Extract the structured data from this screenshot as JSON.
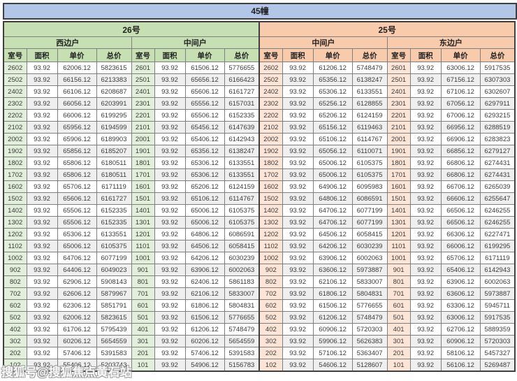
{
  "title": "45幢",
  "watermark": "搜狐号@搜狐焦点黄石站",
  "columns": [
    "室号",
    "面积",
    "单价",
    "总价"
  ],
  "sections": [
    {
      "label": "26号",
      "units": [
        "西边户",
        "中间户"
      ]
    },
    {
      "label": "25号",
      "units": [
        "中间户",
        "东边户"
      ]
    }
  ],
  "groups": [
    {
      "building": "26号",
      "unit": "西边户",
      "rows": [
        [
          "2602",
          "93.92",
          "62006.12",
          "5823615"
        ],
        [
          "2502",
          "93.92",
          "66156.12",
          "6213383"
        ],
        [
          "2402",
          "93.92",
          "66106.12",
          "6208687"
        ],
        [
          "2302",
          "93.92",
          "66056.12",
          "6203991"
        ],
        [
          "2202",
          "93.92",
          "66006.12",
          "6199295"
        ],
        [
          "2102",
          "93.92",
          "65956.12",
          "6194599"
        ],
        [
          "2002",
          "93.92",
          "65906.12",
          "6189903"
        ],
        [
          "1902",
          "93.92",
          "65856.12",
          "6185207"
        ],
        [
          "1802",
          "93.92",
          "65806.12",
          "6180511"
        ],
        [
          "1702",
          "93.92",
          "65806.12",
          "6180511"
        ],
        [
          "1602",
          "93.92",
          "65706.12",
          "6171119"
        ],
        [
          "1502",
          "93.92",
          "65606.12",
          "6161727"
        ],
        [
          "1402",
          "93.92",
          "65506.12",
          "6152335"
        ],
        [
          "1302",
          "93.92",
          "65506.12",
          "6152335"
        ],
        [
          "1202",
          "93.92",
          "65306.12",
          "6133551"
        ],
        [
          "1102",
          "93.92",
          "65006.12",
          "6105375"
        ],
        [
          "1002",
          "93.92",
          "64706.12",
          "6077199"
        ],
        [
          "902",
          "93.92",
          "64406.12",
          "6049023"
        ],
        [
          "802",
          "93.92",
          "62906.12",
          "5908143"
        ],
        [
          "702",
          "93.92",
          "62606.12",
          "5879967"
        ],
        [
          "602",
          "93.92",
          "62306.12",
          "5851791"
        ],
        [
          "502",
          "93.92",
          "62006.12",
          "5823615"
        ],
        [
          "402",
          "93.92",
          "61706.12",
          "5795439"
        ],
        [
          "302",
          "93.92",
          "60206.12",
          "5654559"
        ],
        [
          "202",
          "93.92",
          "57406.12",
          "5391583"
        ],
        [
          "102",
          "93.92",
          "55406.12",
          "5203743"
        ]
      ]
    },
    {
      "building": "26号",
      "unit": "中间户",
      "rows": [
        [
          "2601",
          "93.92",
          "61506.12",
          "5776655"
        ],
        [
          "2501",
          "93.92",
          "65656.12",
          "6166423"
        ],
        [
          "2401",
          "93.92",
          "65606.12",
          "6161727"
        ],
        [
          "2301",
          "93.92",
          "65556.12",
          "6157031"
        ],
        [
          "2201",
          "93.92",
          "65506.12",
          "6152335"
        ],
        [
          "2101",
          "93.92",
          "65456.12",
          "6147639"
        ],
        [
          "2001",
          "93.92",
          "65406.12",
          "6142943"
        ],
        [
          "1901",
          "93.92",
          "65356.12",
          "6138247"
        ],
        [
          "1801",
          "93.92",
          "65306.12",
          "6133551"
        ],
        [
          "1701",
          "93.92",
          "65306.12",
          "6133551"
        ],
        [
          "1601",
          "93.92",
          "65206.12",
          "6124159"
        ],
        [
          "1501",
          "93.92",
          "65106.12",
          "6114767"
        ],
        [
          "1401",
          "93.92",
          "65006.12",
          "6105375"
        ],
        [
          "1301",
          "93.92",
          "65006.12",
          "6105375"
        ],
        [
          "1201",
          "93.92",
          "64806.12",
          "6086591"
        ],
        [
          "1101",
          "93.92",
          "64506.12",
          "6058415"
        ],
        [
          "1001",
          "93.92",
          "64206.12",
          "6030239"
        ],
        [
          "901",
          "93.92",
          "63906.12",
          "6002063"
        ],
        [
          "801",
          "93.92",
          "62406.12",
          "5861183"
        ],
        [
          "701",
          "93.92",
          "62106.12",
          "5833007"
        ],
        [
          "601",
          "93.92",
          "61806.12",
          "5804831"
        ],
        [
          "501",
          "93.92",
          "61506.12",
          "5776655"
        ],
        [
          "401",
          "93.92",
          "61206.12",
          "5748479"
        ],
        [
          "301",
          "93.92",
          "60206.12",
          "5654559"
        ],
        [
          "201",
          "93.92",
          "57406.12",
          "5391583"
        ],
        [
          "101",
          "93.92",
          "54906.12",
          "5156783"
        ]
      ]
    },
    {
      "building": "25号",
      "unit": "中间户",
      "rows": [
        [
          "2602",
          "93.92",
          "61206.12",
          "5748479"
        ],
        [
          "2502",
          "93.92",
          "65356.12",
          "6138247"
        ],
        [
          "2402",
          "93.92",
          "65306.12",
          "6133551"
        ],
        [
          "2302",
          "93.92",
          "65256.12",
          "6128855"
        ],
        [
          "2202",
          "93.92",
          "65206.12",
          "6124159"
        ],
        [
          "2102",
          "93.92",
          "65156.12",
          "6119463"
        ],
        [
          "2002",
          "93.92",
          "65106.12",
          "6114767"
        ],
        [
          "1902",
          "93.92",
          "65056.12",
          "6110071"
        ],
        [
          "1802",
          "93.92",
          "65006.12",
          "6105375"
        ],
        [
          "1702",
          "93.92",
          "65006.12",
          "6105375"
        ],
        [
          "1602",
          "93.92",
          "64906.12",
          "6095983"
        ],
        [
          "1502",
          "93.92",
          "64806.12",
          "6086591"
        ],
        [
          "1402",
          "93.92",
          "64706.12",
          "6077199"
        ],
        [
          "1302",
          "93.92",
          "64706.12",
          "6077199"
        ],
        [
          "1202",
          "93.92",
          "64506.12",
          "6058415"
        ],
        [
          "1102",
          "93.92",
          "64206.12",
          "6030239"
        ],
        [
          "1002",
          "93.92",
          "63906.12",
          "6002063"
        ],
        [
          "902",
          "93.92",
          "63606.12",
          "5973887"
        ],
        [
          "802",
          "93.92",
          "62106.12",
          "5833007"
        ],
        [
          "702",
          "93.92",
          "61806.12",
          "5804831"
        ],
        [
          "602",
          "93.92",
          "61506.12",
          "5776655"
        ],
        [
          "502",
          "93.92",
          "61206.12",
          "5748479"
        ],
        [
          "402",
          "93.92",
          "60906.12",
          "5720303"
        ],
        [
          "302",
          "93.92",
          "59906.12",
          "5626383"
        ],
        [
          "202",
          "93.92",
          "57106.12",
          "5363407"
        ],
        [
          "102",
          "93.92",
          "54606.12",
          "5128607"
        ]
      ]
    },
    {
      "building": "25号",
      "unit": "东边户",
      "rows": [
        [
          "2601",
          "93.92",
          "63006.12",
          "5917535"
        ],
        [
          "2501",
          "93.92",
          "67156.12",
          "6307303"
        ],
        [
          "2401",
          "93.92",
          "67106.12",
          "6302607"
        ],
        [
          "2301",
          "93.92",
          "67056.12",
          "6297911"
        ],
        [
          "2201",
          "93.92",
          "67006.12",
          "6293215"
        ],
        [
          "2101",
          "93.92",
          "66956.12",
          "6288519"
        ],
        [
          "2001",
          "93.92",
          "66906.12",
          "6283823"
        ],
        [
          "1901",
          "93.92",
          "66856.12",
          "6279127"
        ],
        [
          "1801",
          "93.92",
          "66806.12",
          "6274431"
        ],
        [
          "1701",
          "93.92",
          "66806.12",
          "6274431"
        ],
        [
          "1601",
          "93.92",
          "66706.12",
          "6265039"
        ],
        [
          "1501",
          "93.92",
          "66606.12",
          "6255647"
        ],
        [
          "1401",
          "93.92",
          "66506.12",
          "6246255"
        ],
        [
          "1301",
          "93.92",
          "66506.12",
          "6246255"
        ],
        [
          "1201",
          "93.92",
          "66306.12",
          "6227471"
        ],
        [
          "1101",
          "93.92",
          "66006.12",
          "6199295"
        ],
        [
          "1001",
          "93.92",
          "65706.12",
          "6171119"
        ],
        [
          "901",
          "93.92",
          "65406.12",
          "6142943"
        ],
        [
          "801",
          "93.92",
          "63906.12",
          "6002063"
        ],
        [
          "701",
          "93.92",
          "63606.12",
          "5973887"
        ],
        [
          "601",
          "93.92",
          "63306.12",
          "5945711"
        ],
        [
          "501",
          "93.92",
          "63006.12",
          "5917535"
        ],
        [
          "401",
          "93.92",
          "62706.12",
          "5889359"
        ],
        [
          "301",
          "93.92",
          "60906.12",
          "5720303"
        ],
        [
          "201",
          "93.92",
          "58106.12",
          "5457327"
        ],
        [
          "101",
          "93.92",
          "56106.12",
          "5269487"
        ]
      ]
    }
  ]
}
